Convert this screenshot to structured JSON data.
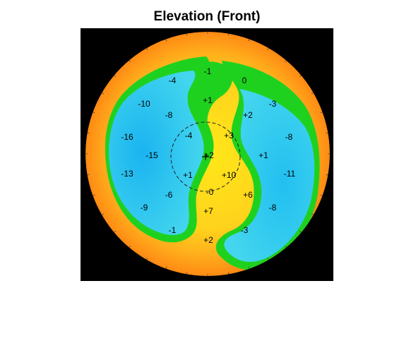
{
  "title": "Elevation (Front)",
  "colors": {
    "background": "#000000",
    "rim_outer": "#ff9a1a",
    "rim_mid": "#ffc21e",
    "plateau": "#ffe21a",
    "transition": "#1fd11f",
    "depression": "#33ccee",
    "depression_core": "#1ab8f0"
  },
  "chart_data": {
    "type": "heatmap",
    "title": "Elevation (Front)",
    "xlabel": "",
    "ylabel": "",
    "labels": [
      {
        "text": "-1"
      },
      {
        "text": "-4"
      },
      {
        "text": "0"
      },
      {
        "text": "+1"
      },
      {
        "text": "-10"
      },
      {
        "text": "-8"
      },
      {
        "text": "+2"
      },
      {
        "text": "-3"
      },
      {
        "text": "-16"
      },
      {
        "text": "-4"
      },
      {
        "text": "+3"
      },
      {
        "text": "-8"
      },
      {
        "text": "-15"
      },
      {
        "text": "+2"
      },
      {
        "text": "+1"
      },
      {
        "text": "-13"
      },
      {
        "text": "+1"
      },
      {
        "text": "+10"
      },
      {
        "text": "-11"
      },
      {
        "text": "-6"
      },
      {
        "text": "-0"
      },
      {
        "text": "+6"
      },
      {
        "text": "-9"
      },
      {
        "text": "+7"
      },
      {
        "text": "-8"
      },
      {
        "text": "-1"
      },
      {
        "text": "-3"
      },
      {
        "text": "+2"
      }
    ],
    "grid": false,
    "legend": "none"
  }
}
